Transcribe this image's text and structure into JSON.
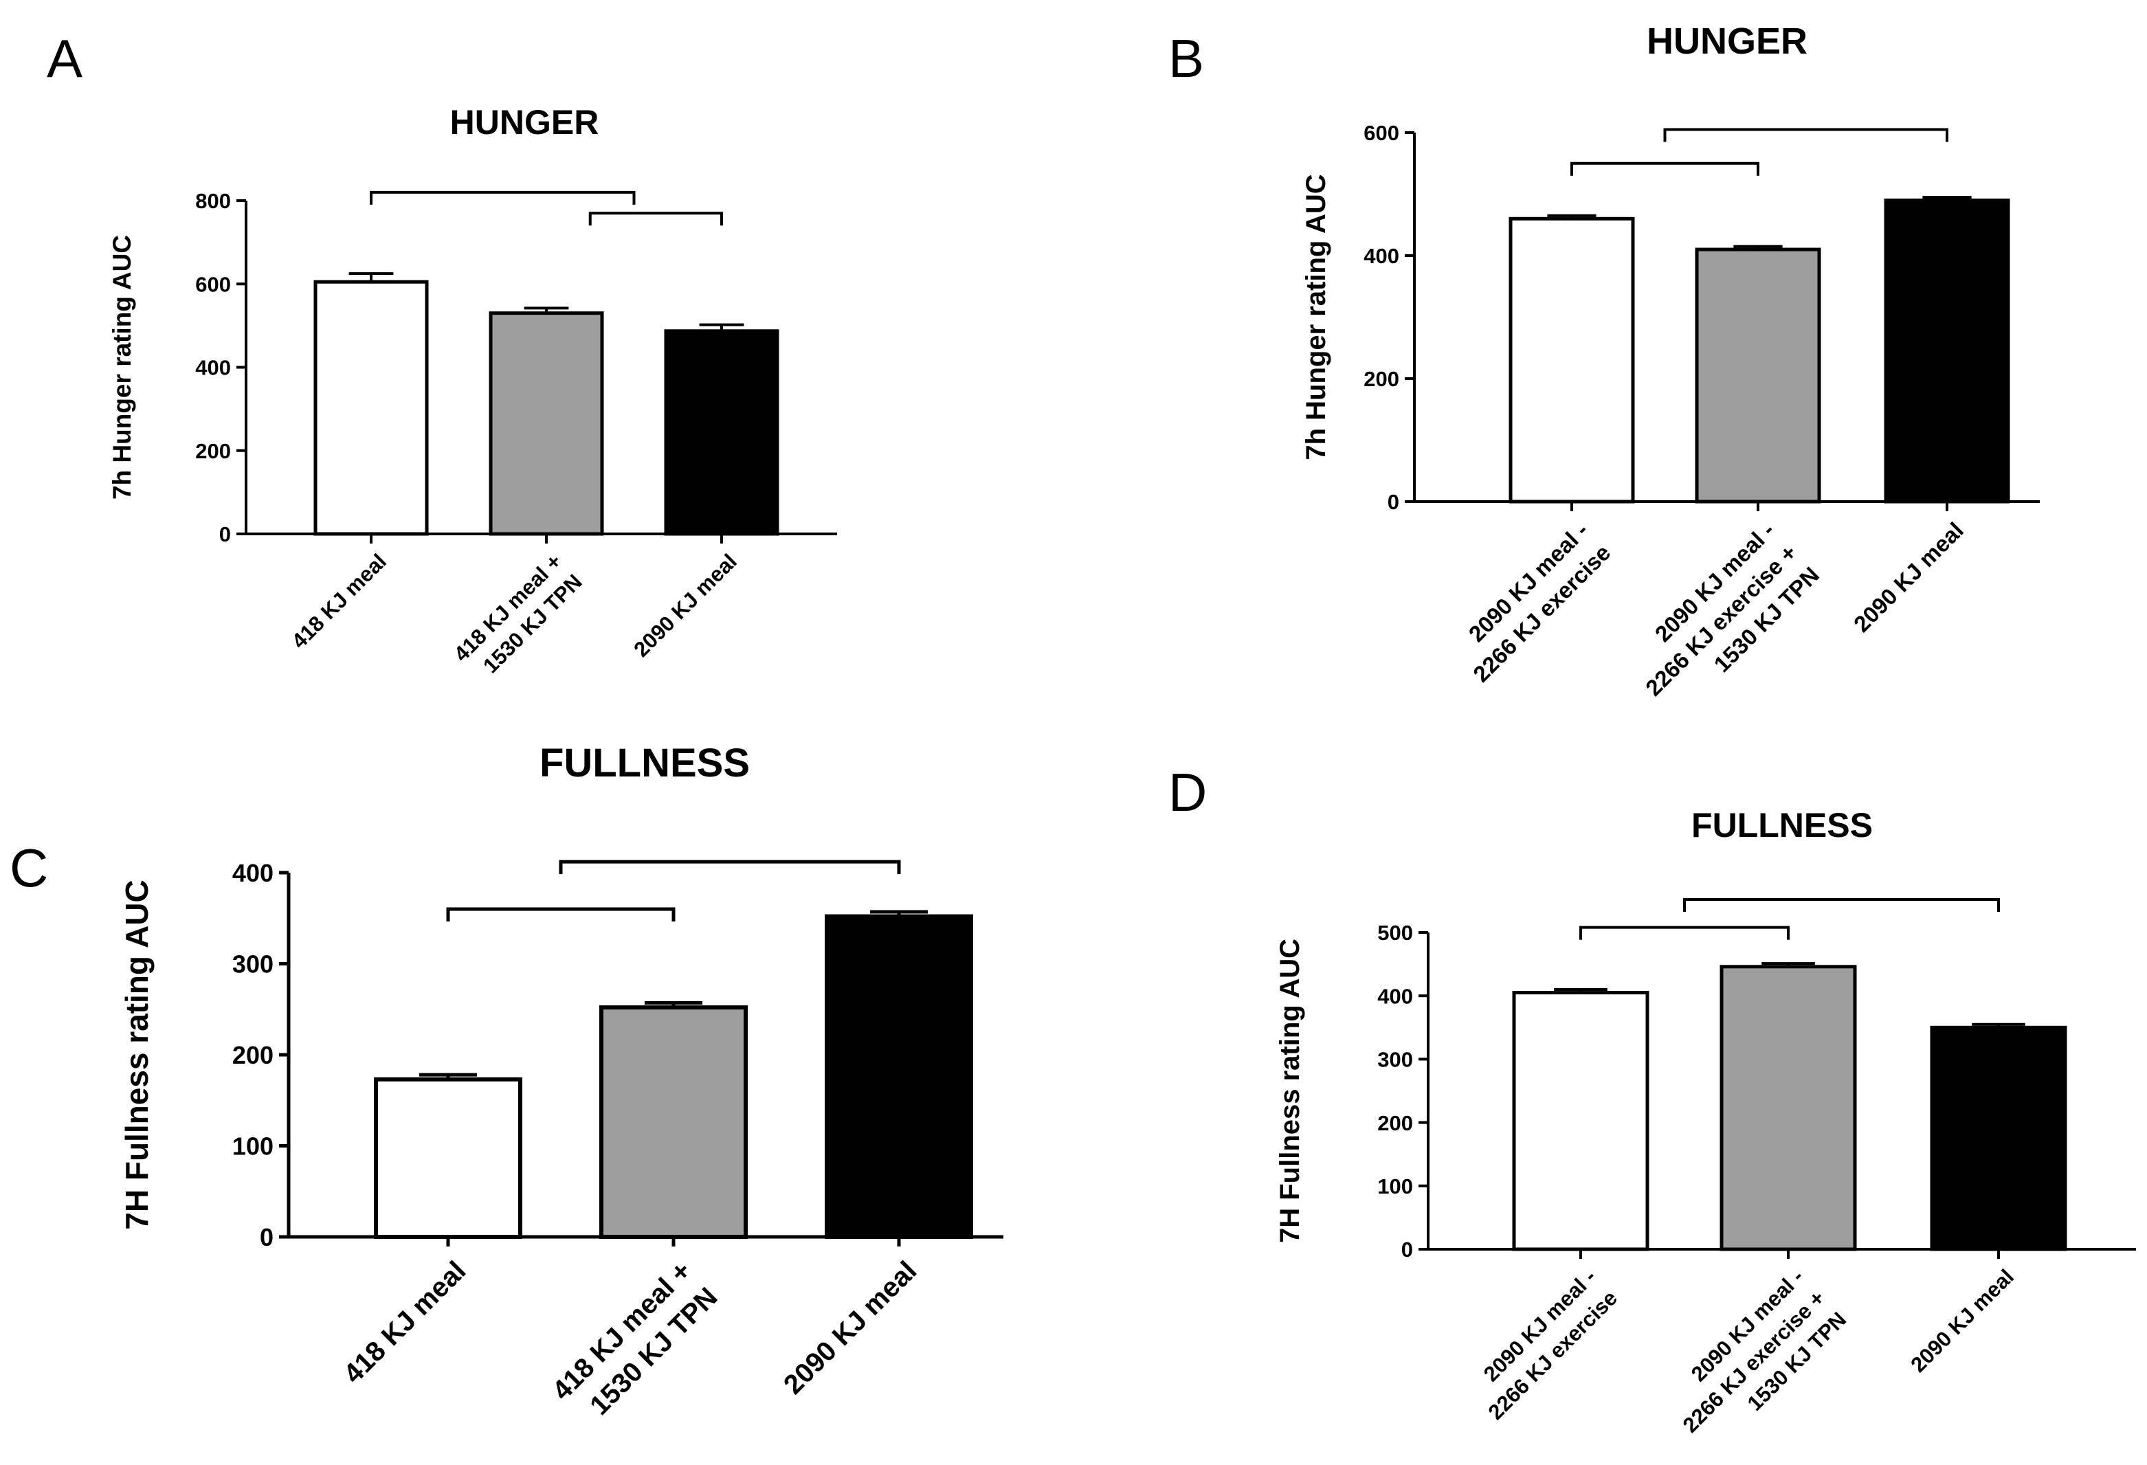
{
  "panels": [
    "A",
    "B",
    "C",
    "D"
  ],
  "chart_data": [
    {
      "panel": "A",
      "type": "bar",
      "title": "HUNGER",
      "ylabel": "7h Hunger rating AUC",
      "xlabel": "",
      "ylim": [
        0,
        800
      ],
      "yticks": [
        0,
        200,
        400,
        600,
        800
      ],
      "categories": [
        [
          "418 KJ meal"
        ],
        [
          "418 KJ meal +",
          "1530 KJ TPN"
        ],
        [
          "2090 KJ meal"
        ]
      ],
      "values": [
        605,
        530,
        487
      ],
      "errors": [
        20,
        12,
        15
      ],
      "fills": [
        "#ffffff",
        "#9e9e9e",
        "#000000"
      ],
      "brackets": [
        {
          "from": 0,
          "to": 1.5,
          "level": 820
        },
        {
          "from": 1.25,
          "to": 2,
          "level": 770
        }
      ]
    },
    {
      "panel": "B",
      "type": "bar",
      "title": "HUNGER",
      "ylabel": "7h Hunger rating AUC",
      "xlabel": "",
      "ylim": [
        0,
        600
      ],
      "yticks": [
        0,
        200,
        400,
        600
      ],
      "categories": [
        [
          "2090 KJ meal -",
          "2266 KJ exercise"
        ],
        [
          "2090 KJ meal -",
          "2266 KJ exercise +",
          "1530 KJ TPN"
        ],
        [
          "2090 KJ meal"
        ]
      ],
      "values": [
        460,
        410,
        490
      ],
      "errors": [
        5,
        5,
        5
      ],
      "fills": [
        "#ffffff",
        "#9e9e9e",
        "#000000"
      ],
      "brackets": [
        {
          "from": 0,
          "to": 1,
          "level": 550
        },
        {
          "from": 0.5,
          "to": 2,
          "level": 605
        }
      ]
    },
    {
      "panel": "C",
      "type": "bar",
      "title": "FULLNESS",
      "ylabel": "7H Fullness rating AUC",
      "xlabel": "",
      "ylim": [
        0,
        400
      ],
      "yticks": [
        0,
        100,
        200,
        300,
        400
      ],
      "categories": [
        [
          "418 KJ meal"
        ],
        [
          "418 KJ meal +",
          "1530 KJ TPN"
        ],
        [
          "2090 KJ meal"
        ]
      ],
      "values": [
        173,
        252,
        352
      ],
      "errors": [
        5,
        5,
        5
      ],
      "fills": [
        "#ffffff",
        "#9e9e9e",
        "#000000"
      ],
      "brackets": [
        {
          "from": 0,
          "to": 1,
          "level": 360
        },
        {
          "from": 0.5,
          "to": 2,
          "level": 412
        }
      ]
    },
    {
      "panel": "D",
      "type": "bar",
      "title": "FULLNESS",
      "ylabel": "7H Fullness rating AUC",
      "xlabel": "",
      "ylim": [
        0,
        500
      ],
      "yticks": [
        0,
        100,
        200,
        300,
        400,
        500
      ],
      "categories": [
        [
          "2090 KJ meal -",
          "2266 KJ exercise"
        ],
        [
          "2090 KJ meal -",
          "2266 KJ exercise +",
          "1530 KJ TPN"
        ],
        [
          "2090 KJ meal"
        ]
      ],
      "values": [
        405,
        446,
        350
      ],
      "errors": [
        5,
        5,
        5
      ],
      "fills": [
        "#ffffff",
        "#9e9e9e",
        "#000000"
      ],
      "brackets": [
        {
          "from": 0,
          "to": 1,
          "level": 508
        },
        {
          "from": 0.5,
          "to": 2,
          "level": 552
        }
      ]
    }
  ]
}
